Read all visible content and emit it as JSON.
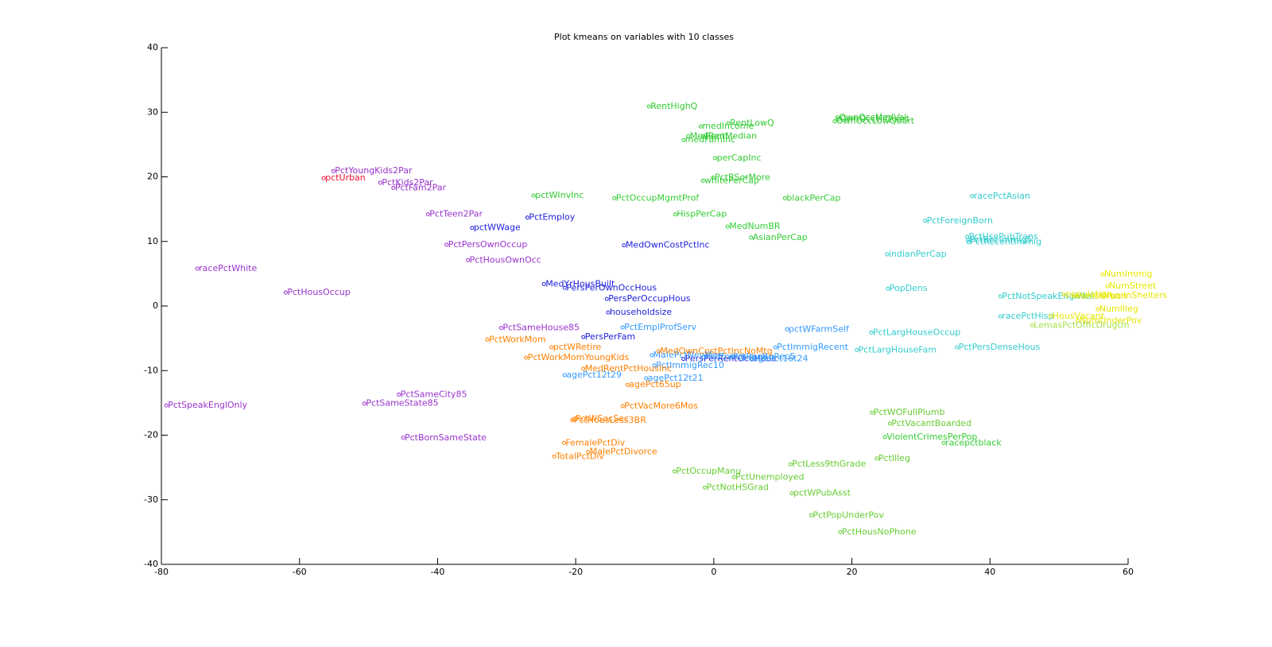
{
  "chart_data": {
    "type": "scatter",
    "title": "Plot kmeans on variables with 10 classes",
    "xlim": [
      -80,
      60
    ],
    "ylim": [
      -40,
      40
    ],
    "xticks": [
      -80,
      -60,
      -40,
      -20,
      0,
      20,
      40,
      60
    ],
    "yticks": [
      -40,
      -30,
      -20,
      -10,
      0,
      10,
      20,
      30,
      40
    ],
    "series": [
      {
        "color": "#9933cc",
        "labels": [
          "PctYoungKids2Par",
          "PctKids2Par",
          "PctFam2Par",
          "PctTeen2Par",
          "PctPersOwnOccup",
          "PctHousOwnOcc",
          "racePctWhite",
          "PctHousOccup",
          "PctSameHouse85",
          "PctSpeakEnglOnly",
          "PctSameCity85",
          "PctSameState85",
          "PctBornSameState"
        ],
        "x": [
          -55.1,
          -48.3,
          -46.4,
          -41.4,
          -38.7,
          -35.6,
          -74.8,
          -62.0,
          -30.8,
          -79.3,
          -45.6,
          -50.6,
          -45.0
        ],
        "values": [
          20.9,
          19.1,
          18.3,
          14.2,
          9.5,
          7.1,
          5.8,
          2.1,
          -3.4,
          -15.4,
          -13.7,
          -15.1,
          -20.4
        ]
      },
      {
        "color": "#ee1133",
        "labels": [
          "pctUrban"
        ],
        "x": [
          -56.5
        ],
        "values": [
          19.8
        ]
      },
      {
        "color": "#2222dd",
        "labels": [
          "pctWWage",
          "PctEmploy",
          "MedOwnCostPctInc",
          "MedYrHousBuilt",
          "PersPerOwnOccHous",
          "PersPerOccupHous",
          "householdsize",
          "PersPerFam",
          "PersPerRentOccHous"
        ],
        "x": [
          -35.0,
          -27.0,
          -13.0,
          -24.6,
          -21.6,
          -15.5,
          -15.3,
          -18.9,
          -4.4
        ],
        "values": [
          12.1,
          13.7,
          9.4,
          3.4,
          2.8,
          1.1,
          -1.0,
          -4.8,
          -8.2
        ]
      },
      {
        "color": "#3399ff",
        "labels": [
          "PctEmplProfServ",
          "pctWFarmSelf",
          "PctImmigRecent",
          "PctImmigRec5",
          "PctImmigRec8",
          "PctImmigRec10",
          "agePct16t24",
          "agePct12t29",
          "agePct12t21",
          "MalePctNevMarr"
        ],
        "x": [
          -13.2,
          10.6,
          8.9,
          2.5,
          -1.5,
          -8.6,
          5.4,
          -21.6,
          -9.8,
          -9.0
        ],
        "values": [
          -3.3,
          -3.6,
          -6.4,
          -7.9,
          -7.9,
          -9.2,
          -8.2,
          -10.7,
          -11.2,
          -7.6
        ]
      },
      {
        "color": "#ff8000",
        "labels": [
          "PctWorkMom",
          "pctWRetire",
          "PctWorkMomYoungKids",
          "MedRentPctHousInc",
          "agePct65up",
          "PctVacMore6Mos",
          "MedOwnCostPctIncNoMtg",
          "PctHousLess3BR",
          "PctWSocSec",
          "FemalePctDiv",
          "MalePctDivorce",
          "TotalPctDiv"
        ],
        "x": [
          -32.8,
          -23.5,
          -27.2,
          -18.9,
          -12.5,
          -13.2,
          -8.0,
          -20.5,
          -20.3,
          -21.7,
          -18.2,
          -23.1
        ],
        "values": [
          -5.2,
          -6.4,
          -8.0,
          -9.7,
          -12.2,
          -15.5,
          -7.0,
          -17.7,
          -17.5,
          -21.2,
          -22.6,
          -23.3
        ]
      },
      {
        "color": "#33cc33",
        "labels": [
          "RentHighQ",
          "medIncome",
          "RentLowQ",
          "MedRent",
          "RentMedian",
          "medFamInc",
          "OwnOccMedVal",
          "OwnOccHiQuart",
          "OwnOccLowQuart",
          "perCapInc",
          "PctBSorMore",
          "whitePerCap",
          "pctWInvInc",
          "PctOccupMgmtProf",
          "blackPerCap",
          "HispPerCap",
          "MedNumBR",
          "AsianPerCap",
          "ViolentCrimesPerPop",
          "racepctblack"
        ],
        "x": [
          -9.4,
          -1.9,
          2.1,
          -3.7,
          -1.5,
          -4.4,
          17.9,
          18.0,
          17.5,
          0.2,
          -0.1,
          -1.6,
          -26.1,
          -14.4,
          10.3,
          -5.6,
          2.0,
          5.4,
          24.8,
          33.3
        ],
        "values": [
          30.9,
          27.8,
          28.3,
          26.3,
          26.3,
          25.7,
          29.2,
          28.9,
          28.6,
          22.9,
          19.9,
          19.4,
          17.1,
          16.7,
          16.7,
          14.2,
          12.3,
          10.6,
          -20.3,
          -21.2
        ]
      },
      {
        "color": "#66cc33",
        "labels": [
          "PctWOFullPlumb",
          "PctVacantBoarded",
          "PctIlleg",
          "PctLess9thGrade",
          "PctOccupManu",
          "PctUnemployed",
          "PctNotHSGrad",
          "pctWPubAsst",
          "PctPopUnderPov",
          "PctHousNoPhone"
        ],
        "x": [
          22.9,
          25.5,
          23.6,
          11.1,
          -5.7,
          2.9,
          -1.3,
          11.3,
          14.1,
          18.3
        ],
        "values": [
          -16.5,
          -18.2,
          -23.6,
          -24.5,
          -25.6,
          -26.5,
          -28.1,
          -29.0,
          -32.4,
          -35.0
        ]
      },
      {
        "color": "#33cccc",
        "labels": [
          "racePctAsian",
          "PctForeignBorn",
          "PctUsePubTrans",
          "PctRecImmig5",
          "PctRecentImmig",
          "indianPerCap",
          "PopDens",
          "PctNotSpeakEnglWell",
          "racePctHisp",
          "PctLargHouseOccup",
          "PctLargHouseFam",
          "PctPersDenseHous"
        ],
        "x": [
          37.4,
          30.6,
          36.7,
          36.8,
          36.9,
          25.1,
          25.2,
          41.5,
          41.5,
          22.8,
          20.7,
          35.2
        ],
        "values": [
          17.0,
          13.2,
          10.7,
          10.2,
          9.9,
          8.0,
          2.7,
          1.5,
          -1.6,
          -4.1,
          -6.8,
          -6.4
        ]
      },
      {
        "color": "#e6e600",
        "labels": [
          "NumImmig",
          "NumStreet",
          "NumInShelters",
          "numbUrban",
          "population",
          "HousVacant",
          "NumUnderPov",
          "NumIlleg"
        ],
        "x": [
          56.3,
          57.0,
          56.1,
          52.1,
          50.7,
          48.8,
          52.7,
          55.6
        ],
        "values": [
          4.9,
          3.1,
          1.6,
          1.5,
          1.8,
          -1.6,
          -2.3,
          -0.5
        ]
      },
      {
        "color": "#a6e04d",
        "labels": [
          "LemasPctOfficDrugUn"
        ],
        "x": [
          46.1
        ],
        "values": [
          -3.0
        ]
      }
    ]
  }
}
